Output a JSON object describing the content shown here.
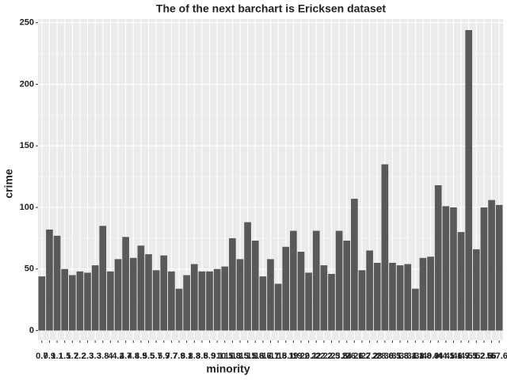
{
  "chart_data": {
    "type": "bar",
    "title": "The of the next barchart is Ericksen dataset",
    "x_label": "minority",
    "y_label": "crime",
    "categories": [
      "0.7",
      "0.9",
      "1.1",
      "1.5",
      "1.7",
      "2.2",
      "2.3",
      "3.3",
      "3.8",
      "4",
      "4.2",
      "4.7",
      "4.8",
      "4.9",
      "5.5",
      "5.7",
      "5.9",
      "7.7",
      "7.9",
      "8.1",
      "8.3",
      "8.5",
      "8.9",
      "9.1",
      "10.5",
      "11.8",
      "13.5",
      "15.1",
      "15.8",
      "16.6",
      "17.1",
      "17.5",
      "18.1",
      "19",
      "19.2",
      "20.1",
      "22",
      "22.2",
      "22.5",
      "23.5",
      "24",
      "26.1",
      "26.2",
      "27.2",
      "28",
      "28.6",
      "30.5",
      "31.8",
      "33.1",
      "34.1",
      "38.8",
      "40.9",
      "44",
      "44.1",
      "45.1",
      "46.9",
      "47.5",
      "51.2",
      "52.6",
      "56",
      "57.6"
    ],
    "values": [
      44,
      82,
      77,
      50,
      45,
      48,
      47,
      53,
      85,
      48,
      58,
      76,
      59,
      69,
      62,
      49,
      61,
      48,
      34,
      45,
      54,
      48,
      48,
      50,
      52,
      75,
      58,
      88,
      73,
      44,
      58,
      38,
      68,
      81,
      64,
      47,
      81,
      53,
      46,
      81,
      73,
      107,
      49,
      65,
      55,
      135,
      55,
      53,
      54,
      34,
      59,
      60,
      118,
      101,
      100,
      80,
      244,
      66,
      100,
      106,
      102
    ],
    "color": "#595959",
    "ylim": [
      -8,
      253
    ],
    "yticks": [
      0,
      50,
      100,
      150,
      200,
      250
    ],
    "grid": true
  }
}
